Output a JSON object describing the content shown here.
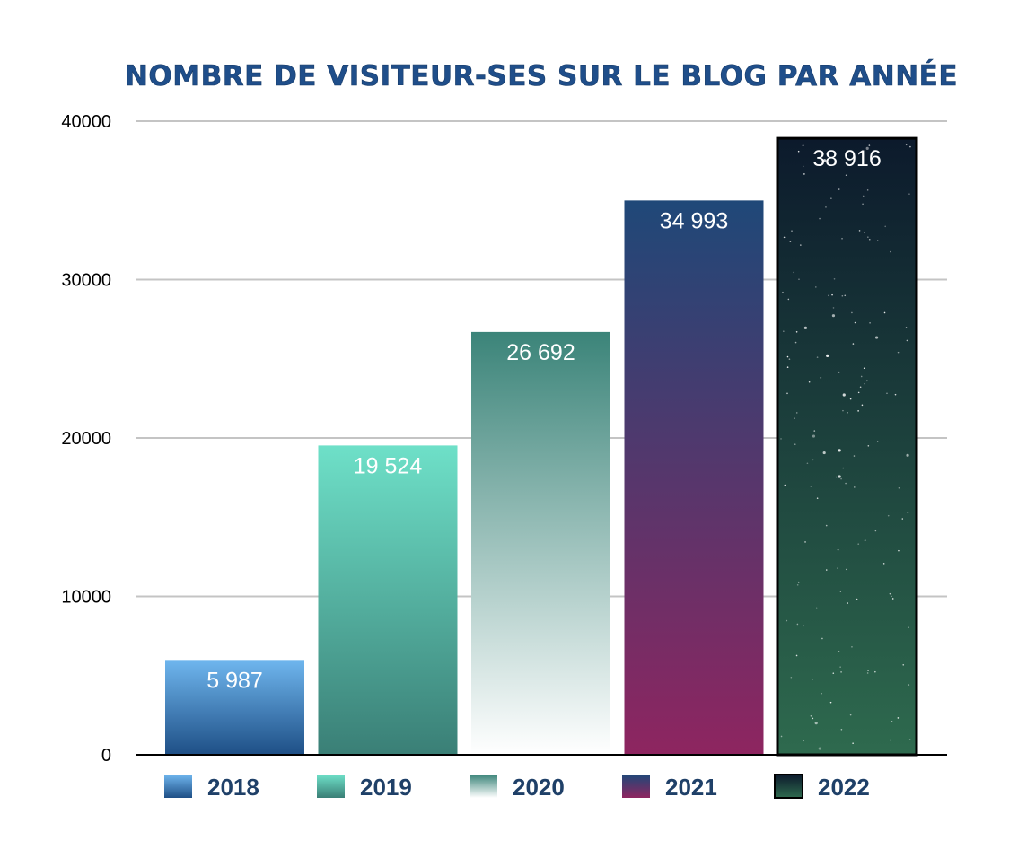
{
  "chart_data": {
    "type": "bar",
    "title": "NOMBRE DE VISITEUR-SES SUR LE BLOG PAR ANNÉE",
    "xlabel": "",
    "ylabel": "",
    "categories": [
      "2018",
      "2019",
      "2020",
      "2021",
      "2022"
    ],
    "values": [
      5987,
      19524,
      26692,
      34993,
      38916
    ],
    "value_labels": [
      "5 987",
      "19 524",
      "26 692",
      "34 993",
      "38 916"
    ],
    "ylim": [
      0,
      40000
    ],
    "yticks": [
      0,
      10000,
      20000,
      30000,
      40000
    ],
    "ytick_labels": [
      "0",
      "10000",
      "20000",
      "30000",
      "40000"
    ],
    "grid": true,
    "legend_position": "bottom",
    "bar_gradients": [
      [
        "#6fb6ee",
        "#1e4f86"
      ],
      [
        "#6ee0c8",
        "#3a7f76"
      ],
      [
        "#3b8479",
        "#ffffff"
      ],
      [
        "#1f4878",
        "#8e2560"
      ],
      [
        "#0c1a2c",
        "#2e6a4e"
      ]
    ]
  }
}
